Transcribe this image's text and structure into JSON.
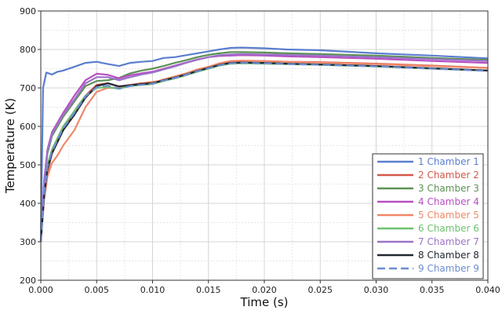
{
  "chart_data": {
    "type": "line",
    "xlabel": "Time (s)",
    "ylabel": "Temperature (K)",
    "xlim": [
      0.0,
      0.04
    ],
    "ylim": [
      200,
      900
    ],
    "x_ticks": [
      "0.000",
      "0.005",
      "0.010",
      "0.015",
      "0.020",
      "0.025",
      "0.030",
      "0.035",
      "0.040"
    ],
    "y_ticks": [
      "200",
      "300",
      "400",
      "500",
      "600",
      "700",
      "800",
      "900"
    ],
    "grid": true,
    "legend_position": "bottom-right",
    "series": [
      {
        "name": "1 Chamber 1",
        "color": "#5b7ecf",
        "dash": false,
        "x": [
          0,
          0.0002,
          0.0005,
          0.001,
          0.0015,
          0.002,
          0.003,
          0.004,
          0.005,
          0.006,
          0.007,
          0.008,
          0.009,
          0.01,
          0.011,
          0.012,
          0.013,
          0.014,
          0.015,
          0.016,
          0.017,
          0.018,
          0.02,
          0.022,
          0.025,
          0.03,
          0.035,
          0.04
        ],
        "y": [
          300,
          700,
          740,
          735,
          742,
          745,
          755,
          765,
          768,
          762,
          757,
          765,
          768,
          770,
          778,
          780,
          785,
          790,
          795,
          800,
          804,
          805,
          803,
          800,
          798,
          790,
          784,
          777
        ]
      },
      {
        "name": "2 Chamber 2",
        "color": "#d2584a",
        "dash": false,
        "x": [
          0,
          0.0003,
          0.0006,
          0.001,
          0.0015,
          0.002,
          0.003,
          0.004,
          0.005,
          0.006,
          0.007,
          0.008,
          0.009,
          0.01,
          0.011,
          0.012,
          0.013,
          0.014,
          0.015,
          0.016,
          0.017,
          0.018,
          0.02,
          0.022,
          0.025,
          0.03,
          0.035,
          0.04
        ],
        "y": [
          300,
          420,
          480,
          530,
          560,
          590,
          640,
          680,
          708,
          712,
          703,
          708,
          712,
          715,
          720,
          728,
          735,
          745,
          752,
          762,
          768,
          770,
          770,
          768,
          767,
          763,
          758,
          752
        ]
      },
      {
        "name": "3 Chamber 3",
        "color": "#5d9155",
        "dash": false,
        "x": [
          0,
          0.0003,
          0.0006,
          0.001,
          0.0015,
          0.002,
          0.003,
          0.004,
          0.005,
          0.006,
          0.007,
          0.008,
          0.009,
          0.01,
          0.011,
          0.012,
          0.013,
          0.014,
          0.015,
          0.016,
          0.017,
          0.018,
          0.02,
          0.022,
          0.025,
          0.03,
          0.035,
          0.04
        ],
        "y": [
          300,
          450,
          530,
          575,
          600,
          625,
          665,
          705,
          718,
          720,
          726,
          738,
          745,
          750,
          757,
          765,
          772,
          780,
          786,
          790,
          793,
          793,
          792,
          790,
          788,
          784,
          778,
          773
        ]
      },
      {
        "name": "4 Chamber 4",
        "color": "#b84fc1",
        "dash": false,
        "x": [
          0,
          0.0003,
          0.0006,
          0.001,
          0.0015,
          0.002,
          0.003,
          0.004,
          0.005,
          0.006,
          0.007,
          0.008,
          0.009,
          0.01,
          0.011,
          0.012,
          0.013,
          0.014,
          0.015,
          0.016,
          0.017,
          0.018,
          0.02,
          0.022,
          0.025,
          0.03,
          0.035,
          0.04
        ],
        "y": [
          300,
          460,
          540,
          585,
          610,
          635,
          680,
          720,
          737,
          734,
          725,
          733,
          738,
          742,
          750,
          758,
          766,
          774,
          780,
          783,
          784,
          785,
          784,
          782,
          780,
          776,
          770,
          765
        ]
      },
      {
        "name": "5 Chamber 5",
        "color": "#f0886a",
        "dash": false,
        "x": [
          0,
          0.0003,
          0.0006,
          0.001,
          0.0015,
          0.002,
          0.003,
          0.004,
          0.005,
          0.006,
          0.007,
          0.008,
          0.009,
          0.01,
          0.011,
          0.012,
          0.013,
          0.014,
          0.015,
          0.016,
          0.017,
          0.018,
          0.02,
          0.022,
          0.025,
          0.03,
          0.035,
          0.04
        ],
        "y": [
          300,
          410,
          470,
          505,
          525,
          550,
          590,
          650,
          690,
          700,
          700,
          708,
          710,
          713,
          722,
          730,
          738,
          748,
          755,
          764,
          770,
          771,
          770,
          768,
          766,
          762,
          757,
          752
        ]
      },
      {
        "name": "6 Chamber 6",
        "color": "#6ec16e",
        "dash": false,
        "x": [
          0,
          0.0003,
          0.0006,
          0.001,
          0.0015,
          0.002,
          0.003,
          0.004,
          0.005,
          0.006,
          0.007,
          0.008,
          0.009,
          0.01,
          0.011,
          0.012,
          0.013,
          0.014,
          0.015,
          0.016,
          0.017,
          0.018,
          0.02,
          0.022,
          0.025,
          0.03,
          0.035,
          0.04
        ],
        "y": [
          300,
          430,
          500,
          540,
          570,
          600,
          640,
          680,
          700,
          702,
          698,
          705,
          708,
          710,
          718,
          725,
          733,
          742,
          750,
          758,
          763,
          764,
          763,
          762,
          760,
          756,
          750,
          745
        ]
      },
      {
        "name": "7 Chamber 7",
        "color": "#9b73c8",
        "dash": false,
        "x": [
          0,
          0.0003,
          0.0006,
          0.001,
          0.0015,
          0.002,
          0.003,
          0.004,
          0.005,
          0.006,
          0.007,
          0.008,
          0.009,
          0.01,
          0.011,
          0.012,
          0.013,
          0.014,
          0.015,
          0.016,
          0.017,
          0.018,
          0.02,
          0.022,
          0.025,
          0.03,
          0.035,
          0.04
        ],
        "y": [
          300,
          455,
          535,
          580,
          605,
          630,
          670,
          712,
          728,
          728,
          720,
          728,
          735,
          740,
          748,
          756,
          765,
          773,
          780,
          785,
          787,
          788,
          787,
          786,
          784,
          780,
          775,
          770
        ]
      },
      {
        "name": "8 Chamber 8",
        "color": "#222831",
        "dash": false,
        "x": [
          0,
          0.0003,
          0.0006,
          0.001,
          0.0015,
          0.002,
          0.003,
          0.004,
          0.005,
          0.006,
          0.007,
          0.008,
          0.009,
          0.01,
          0.011,
          0.012,
          0.013,
          0.014,
          0.015,
          0.016,
          0.017,
          0.018,
          0.02,
          0.022,
          0.025,
          0.03,
          0.035,
          0.04
        ],
        "y": [
          300,
          420,
          490,
          530,
          560,
          590,
          630,
          675,
          705,
          712,
          704,
          707,
          710,
          712,
          720,
          727,
          735,
          744,
          752,
          760,
          765,
          766,
          765,
          763,
          761,
          757,
          751,
          745
        ]
      },
      {
        "name": "9 Chamber 9",
        "color": "#6d8ccf",
        "dash": true,
        "x": [
          0,
          0.0003,
          0.0006,
          0.001,
          0.0015,
          0.002,
          0.003,
          0.004,
          0.005,
          0.006,
          0.007,
          0.008,
          0.009,
          0.01,
          0.011,
          0.012,
          0.013,
          0.014,
          0.015,
          0.016,
          0.017,
          0.018,
          0.02,
          0.022,
          0.025,
          0.03,
          0.035,
          0.04
        ],
        "y": [
          300,
          425,
          495,
          535,
          565,
          595,
          635,
          678,
          702,
          706,
          698,
          705,
          708,
          711,
          719,
          726,
          734,
          743,
          751,
          759,
          764,
          765,
          764,
          762,
          760,
          756,
          750,
          744
        ]
      }
    ]
  }
}
